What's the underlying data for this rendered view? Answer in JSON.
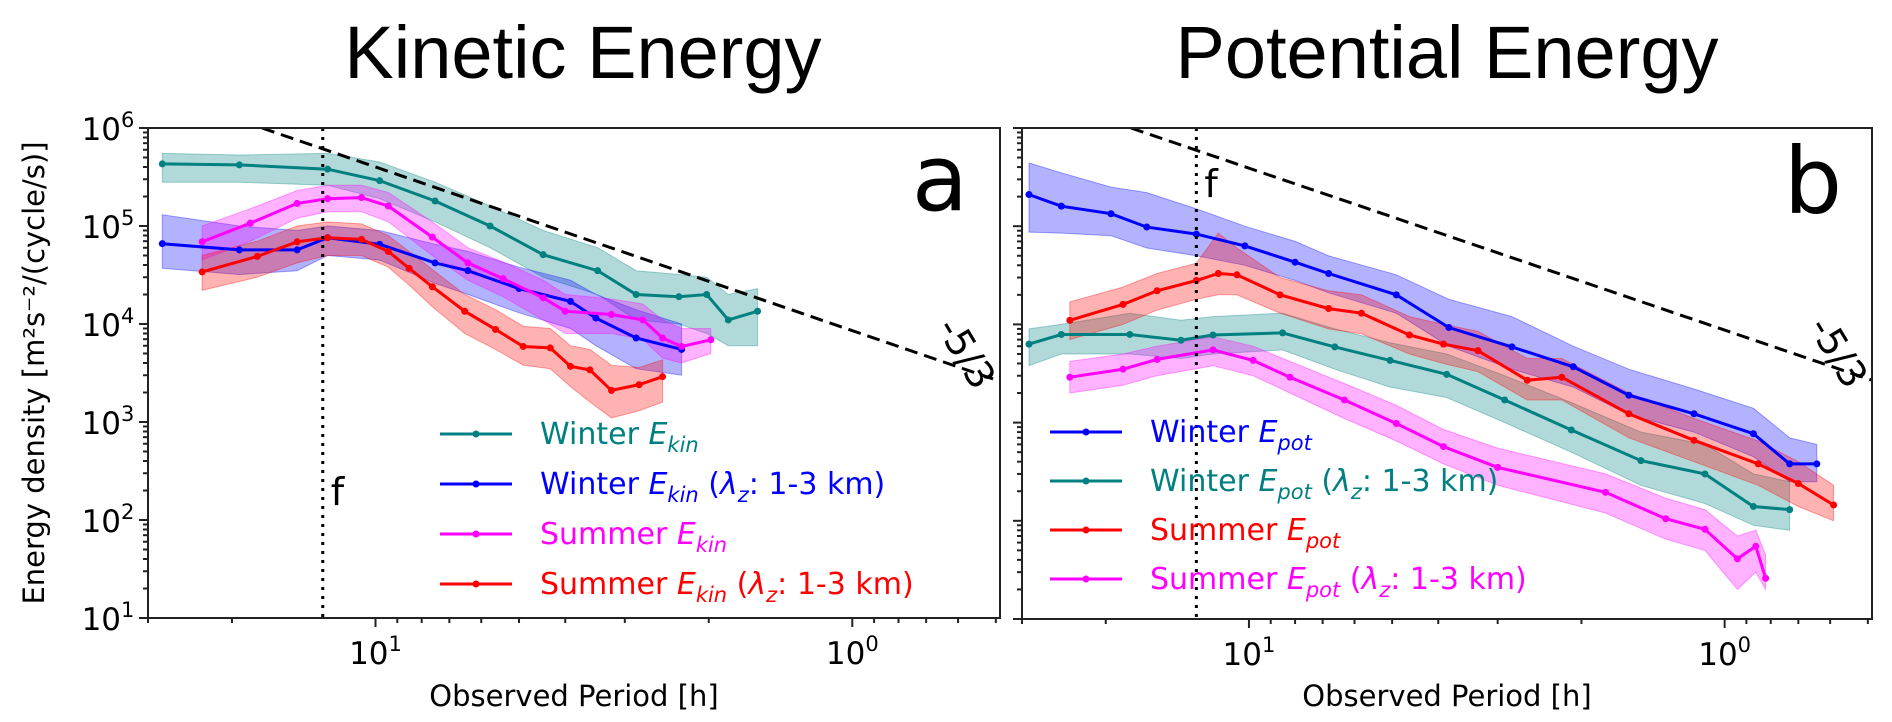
{
  "figure": {
    "titles": [
      "Kinetic Energy",
      "Potential Energy"
    ],
    "ylabel": "Energy density [m²s⁻²/(cycle/s)]",
    "xlabel": "Observed Period [h]"
  },
  "chart_data": [
    {
      "type": "line",
      "panel_label": "a",
      "title": "Kinetic Energy",
      "xlabel": "Observed Period [h]",
      "ylabel": "Energy density [m²s⁻²/(cycle/s)]",
      "xscale": "log",
      "yscale": "log",
      "xlim": [
        30,
        0.49
      ],
      "ylim": [
        10,
        1000000
      ],
      "xticks": [
        {
          "value": 10,
          "base": "10",
          "exp": "1"
        },
        {
          "value": 1,
          "base": "10",
          "exp": "0"
        }
      ],
      "yticks": [
        {
          "value": 10,
          "base": "10",
          "exp": "1"
        },
        {
          "value": 100,
          "base": "10",
          "exp": "2"
        },
        {
          "value": 1000,
          "base": "10",
          "exp": "3"
        },
        {
          "value": 10000,
          "base": "10",
          "exp": "4"
        },
        {
          "value": 100000,
          "base": "10",
          "exp": "5"
        },
        {
          "value": 1000000,
          "base": "10",
          "exp": "6"
        }
      ],
      "show_ylabel": true,
      "inertial_period": {
        "value": 12.9,
        "label": "f"
      },
      "reference_line": {
        "label": "-5/3",
        "points": [
          [
            17.3,
            1000000
          ],
          [
            0.49,
            2600
          ]
        ]
      },
      "legend_position": "lower-center",
      "series": [
        {
          "name": "Winter",
          "symbol": "E",
          "subscript": "kin",
          "qualifier": null,
          "color": "#008080",
          "points": [
            [
              28,
              430000,
              280000,
              550000
            ],
            [
              19.3,
              420000,
              280000,
              530000
            ],
            [
              12.6,
              380000,
              260000,
              550000
            ],
            [
              9.8,
              290000,
              190000,
              450000
            ],
            [
              7.5,
              180000,
              110000,
              280000
            ],
            [
              5.75,
              100000,
              60000,
              160000
            ],
            [
              4.45,
              51000,
              30000,
              90000
            ],
            [
              3.42,
              35000,
              20000,
              60000
            ],
            [
              2.84,
              20000,
              11000,
              35000
            ],
            [
              2.31,
              19000,
              10000,
              32000
            ],
            [
              2.02,
              20000,
              8000,
              30000
            ],
            [
              1.82,
              11000,
              6000,
              20000
            ],
            [
              1.58,
              13500,
              6000,
              23000
            ]
          ]
        },
        {
          "name": "Winter",
          "symbol": "E",
          "subscript": "kin",
          "qualifier": {
            "open": " (",
            "symbol": "λ",
            "subscript": "z",
            "text": ": 1-3 km)"
          },
          "color": "#0000ff",
          "points": [
            [
              28,
              66000,
              37000,
              130000
            ],
            [
              19.3,
              57000,
              32000,
              100000
            ],
            [
              14.6,
              57000,
              35000,
              90000
            ],
            [
              12.6,
              76000,
              50000,
              100000
            ],
            [
              9.8,
              65000,
              45000,
              90000
            ],
            [
              7.5,
              42000,
              26000,
              65000
            ],
            [
              6.4,
              35000,
              20000,
              55000
            ],
            [
              5.0,
              23000,
              13000,
              38000
            ],
            [
              3.9,
              17000,
              9000,
              28000
            ],
            [
              3.45,
              11500,
              6000,
              20000
            ],
            [
              2.84,
              7200,
              3500,
              14000
            ],
            [
              2.28,
              5500,
              3000,
              10000
            ]
          ]
        },
        {
          "name": "Summer",
          "symbol": "E",
          "subscript": "kin",
          "qualifier": null,
          "color": "#ff00ff",
          "points": [
            [
              23.1,
              69000,
              45000,
              100000
            ],
            [
              18.3,
              107000,
              70000,
              150000
            ],
            [
              14.6,
              170000,
              120000,
              230000
            ],
            [
              12.6,
              190000,
              140000,
              260000
            ],
            [
              10.7,
              195000,
              140000,
              260000
            ],
            [
              9.4,
              160000,
              110000,
              220000
            ],
            [
              7.6,
              77000,
              50000,
              110000
            ],
            [
              6.4,
              42000,
              28000,
              60000
            ],
            [
              5.4,
              29000,
              19000,
              43000
            ],
            [
              4.45,
              18500,
              11000,
              28000
            ],
            [
              4.0,
              13500,
              8000,
              20000
            ],
            [
              3.2,
              12500,
              8000,
              18000
            ],
            [
              2.75,
              11000,
              7000,
              16000
            ],
            [
              2.5,
              7200,
              4500,
              11000
            ],
            [
              2.28,
              5900,
              4000,
              9000
            ],
            [
              1.98,
              6900,
              5000,
              9000
            ]
          ]
        },
        {
          "name": "Summer",
          "symbol": "E",
          "subscript": "kin",
          "qualifier": {
            "open": " (",
            "symbol": "λ",
            "subscript": "z",
            "text": ": 1-3 km)"
          },
          "color": "#ff0000",
          "points": [
            [
              23.1,
              34000,
              22000,
              50000
            ],
            [
              17.7,
              49000,
              30000,
              70000
            ],
            [
              14.6,
              69000,
              42000,
              100000
            ],
            [
              12.6,
              76000,
              50000,
              110000
            ],
            [
              10.7,
              73000,
              50000,
              105000
            ],
            [
              9.4,
              55000,
              38000,
              80000
            ],
            [
              8.5,
              37000,
              25000,
              55000
            ],
            [
              7.6,
              24000,
              15000,
              36000
            ],
            [
              6.5,
              13500,
              8000,
              20000
            ],
            [
              5.6,
              8800,
              5500,
              14000
            ],
            [
              4.9,
              5900,
              3800,
              9500
            ],
            [
              4.3,
              5700,
              3500,
              9000
            ],
            [
              3.9,
              3700,
              2300,
              6000
            ],
            [
              3.55,
              3400,
              1600,
              5500
            ],
            [
              3.2,
              2100,
              1100,
              3800
            ],
            [
              2.8,
              2400,
              1300,
              3600
            ],
            [
              2.5,
              2900,
              1600,
              4300
            ]
          ]
        }
      ]
    },
    {
      "type": "line",
      "panel_label": "b",
      "title": "Potential Energy",
      "xlabel": "Observed Period [h]",
      "ylabel": "",
      "xscale": "log",
      "yscale": "log",
      "xlim": [
        30,
        0.49
      ],
      "ylim": [
        10,
        1000000
      ],
      "xticks": [
        {
          "value": 10,
          "base": "10",
          "exp": "1"
        },
        {
          "value": 1,
          "base": "10",
          "exp": "0"
        }
      ],
      "yticks": [],
      "show_ylabel": false,
      "inertial_period": {
        "value": 12.9,
        "label": "f"
      },
      "reference_line": {
        "label": "-5/3",
        "points": [
          [
            17.7,
            1000000
          ],
          [
            0.49,
            2700
          ]
        ]
      },
      "legend_position": "lower-left",
      "series": [
        {
          "name": "Winter",
          "symbol": "E",
          "subscript": "pot",
          "qualifier": null,
          "color": "#0000ff",
          "points": [
            [
              29,
              210000,
              87000,
              440000
            ],
            [
              24.8,
              160000,
              85000,
              350000
            ],
            [
              19.5,
              134000,
              80000,
              250000
            ],
            [
              16.4,
              98000,
              60000,
              220000
            ],
            [
              12.9,
              83000,
              50000,
              150000
            ],
            [
              10.2,
              63000,
              40000,
              100000
            ],
            [
              8.0,
              43000,
              28000,
              70000
            ],
            [
              6.8,
              33000,
              21000,
              50000
            ],
            [
              4.9,
              20000,
              13000,
              32000
            ],
            [
              3.8,
              9300,
              6000,
              18000
            ],
            [
              2.8,
              5900,
              3500,
              12000
            ],
            [
              2.08,
              3700,
              2300,
              6000
            ],
            [
              1.59,
              1900,
              1200,
              3500
            ],
            [
              1.16,
              1230,
              800,
              2200
            ],
            [
              0.87,
              770,
              450,
              1400
            ],
            [
              0.73,
              380,
              250,
              700
            ],
            [
              0.64,
              380,
              250,
              600
            ]
          ]
        },
        {
          "name": "Winter",
          "symbol": "E",
          "subscript": "pot",
          "qualifier": {
            "open": " (",
            "symbol": "λ",
            "subscript": "z",
            "text": ": 1-3 km)"
          },
          "color": "#008080",
          "points": [
            [
              29,
              6300,
              3800,
              9000
            ],
            [
              24.8,
              7900,
              5000,
              10000
            ],
            [
              17.8,
              7900,
              5000,
              13000
            ],
            [
              13.9,
              6900,
              4500,
              11000
            ],
            [
              11.9,
              7800,
              5000,
              12000
            ],
            [
              8.5,
              8200,
              5500,
              13000
            ],
            [
              6.6,
              5900,
              3500,
              9000
            ],
            [
              5.05,
              4300,
              2300,
              6500
            ],
            [
              3.84,
              3100,
              1800,
              5000
            ],
            [
              2.9,
              1700,
              1000,
              3000
            ],
            [
              2.1,
              840,
              500,
              1600
            ],
            [
              1.5,
              410,
              230,
              800
            ],
            [
              1.1,
              300,
              150,
              600
            ],
            [
              0.87,
              140,
              90,
              300
            ],
            [
              0.73,
              130,
              80,
              250
            ]
          ]
        },
        {
          "name": "Summer",
          "symbol": "E",
          "subscript": "pot",
          "qualifier": null,
          "color": "#ff0000",
          "points": [
            [
              23.8,
              11000,
              7000,
              17000
            ],
            [
              18.4,
              16000,
              10000,
              24000
            ],
            [
              15.6,
              22000,
              14000,
              33000
            ],
            [
              12.9,
              28000,
              18000,
              42000
            ],
            [
              11.6,
              33000,
              20000,
              85000
            ],
            [
              10.6,
              32000,
              20000,
              60000
            ],
            [
              8.6,
              20000,
              13000,
              30000
            ],
            [
              6.8,
              14500,
              9000,
              22000
            ],
            [
              5.8,
              13000,
              8000,
              20000
            ],
            [
              4.6,
              7800,
              5000,
              12000
            ],
            [
              3.9,
              6300,
              4000,
              10000
            ],
            [
              3.3,
              5400,
              3300,
              8500
            ],
            [
              2.6,
              2700,
              1700,
              4500
            ],
            [
              2.2,
              2900,
              1700,
              4500
            ],
            [
              1.59,
              1230,
              700,
              2000
            ],
            [
              1.16,
              660,
              400,
              1100
            ],
            [
              0.85,
              380,
              230,
              650
            ],
            [
              0.7,
              240,
              140,
              400
            ],
            [
              0.59,
              145,
              100,
              230
            ]
          ]
        },
        {
          "name": "Summer",
          "symbol": "E",
          "subscript": "pot",
          "qualifier": {
            "open": " (",
            "symbol": "λ",
            "subscript": "z",
            "text": ": 1-3 km)"
          },
          "color": "#ff00ff",
          "points": [
            [
              23.8,
              2900,
              2000,
              4200
            ],
            [
              18.4,
              3500,
              2400,
              5000
            ],
            [
              15.6,
              4400,
              3000,
              6000
            ],
            [
              11.9,
              5500,
              3800,
              7500
            ],
            [
              9.8,
              4300,
              3000,
              6000
            ],
            [
              8.2,
              2900,
              2000,
              4200
            ],
            [
              6.3,
              1700,
              1100,
              2500
            ],
            [
              4.9,
              980,
              650,
              1500
            ],
            [
              3.9,
              570,
              380,
              850
            ],
            [
              3.0,
              350,
              230,
              550
            ],
            [
              1.78,
              195,
              120,
              300
            ],
            [
              1.33,
              105,
              65,
              170
            ],
            [
              1.1,
              82,
              50,
              130
            ],
            [
              0.94,
              41,
              20,
              70
            ],
            [
              0.86,
              55,
              30,
              80
            ],
            [
              0.82,
              26,
              20,
              45
            ]
          ]
        }
      ]
    }
  ]
}
